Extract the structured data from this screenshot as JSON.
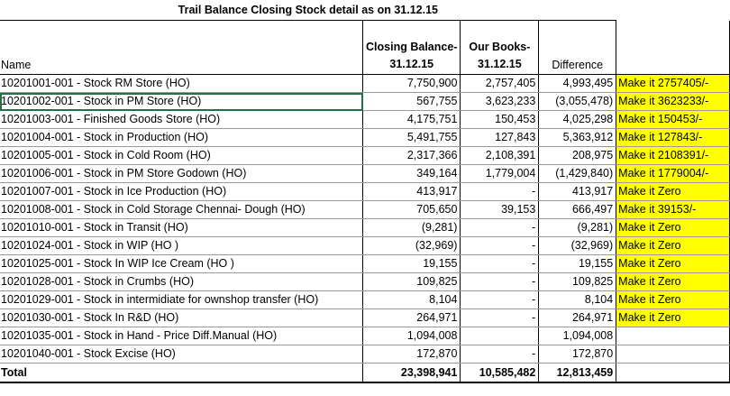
{
  "title": "Trail Balance Closing Stock detail as on 31.12.15",
  "headers": {
    "name": "Name",
    "closing_line1": "Closing Balance-",
    "closing_line2": "31.12.15",
    "books_line1": "Our Books-",
    "books_line2": "31.12.15",
    "difference": "Difference"
  },
  "rows": [
    {
      "name": "10201001-001 - Stock RM Store  (HO)",
      "closing": "7,750,900",
      "books": "2,757,405",
      "difference": "4,993,495",
      "action": "Make it 2757405/-"
    },
    {
      "name": "10201002-001 - Stock in PM Store (HO)",
      "closing": "567,755",
      "books": "3,623,233",
      "difference": "(3,055,478)",
      "action": "Make it 3623233/-"
    },
    {
      "name": "10201003-001 - Finished Goods Store (HO)",
      "closing": "4,175,751",
      "books": "150,453",
      "difference": "4,025,298",
      "action": "Make it 150453/-"
    },
    {
      "name": "10201004-001 - Stock in Production  (HO)",
      "closing": "5,491,755",
      "books": "127,843",
      "difference": "5,363,912",
      "action": "Make it 127843/-"
    },
    {
      "name": "10201005-001 - Stock in Cold Room  (HO)",
      "closing": "2,317,366",
      "books": "2,108,391",
      "difference": "208,975",
      "action": "Make it 2108391/-"
    },
    {
      "name": "10201006-001 - Stock in PM Store Godown (HO)",
      "closing": "349,164",
      "books": "1,779,004",
      "difference": "(1,429,840)",
      "action": "Make it 1779004/-"
    },
    {
      "name": "10201007-001 - Stock in Ice Production  (HO)",
      "closing": "413,917",
      "books": "-",
      "difference": "413,917",
      "action": "Make it Zero"
    },
    {
      "name": "10201008-001 - Stock in Cold Storage Chennai- Dough (HO)",
      "closing": "705,650",
      "books": "39,153",
      "difference": "666,497",
      "action": "Make it 39153/-"
    },
    {
      "name": "10201010-001 - Stock in Transit  (HO)",
      "closing": "(9,281)",
      "books": "-",
      "difference": "(9,281)",
      "action": "Make it Zero"
    },
    {
      "name": "10201024-001 - Stock in  WIP (HO )",
      "closing": "(32,969)",
      "books": "-",
      "difference": "(32,969)",
      "action": "Make it Zero"
    },
    {
      "name": "10201025-001 - Stock In WIP Ice Cream (HO )",
      "closing": "19,155",
      "books": "-",
      "difference": "19,155",
      "action": "Make it Zero"
    },
    {
      "name": "10201028-001 - Stock in Crumbs (HO)",
      "closing": "109,825",
      "books": "-",
      "difference": "109,825",
      "action": "Make it Zero"
    },
    {
      "name": "10201029-001 - Stock in intermidiate for ownshop transfer (HO)",
      "closing": "8,104",
      "books": "-",
      "difference": "8,104",
      "action": "Make it Zero"
    },
    {
      "name": "10201030-001 - Stock In R&D (HO)",
      "closing": "264,971",
      "books": "-",
      "difference": "264,971",
      "action": "Make it Zero"
    },
    {
      "name": "10201035-001 - Stock in Hand - Price Diff.Manual (HO)",
      "closing": "1,094,008",
      "books": "",
      "difference": "1,094,008",
      "action": ""
    },
    {
      "name": "10201040-001 - Stock Excise (HO)",
      "closing": "172,870",
      "books": "-",
      "difference": "172,870",
      "action": ""
    }
  ],
  "total": {
    "label": "Total",
    "closing": "23,398,941",
    "books": "10,585,482",
    "difference": "12,813,459"
  },
  "colors": {
    "highlight": "#ffff00",
    "selection": "#217346"
  }
}
